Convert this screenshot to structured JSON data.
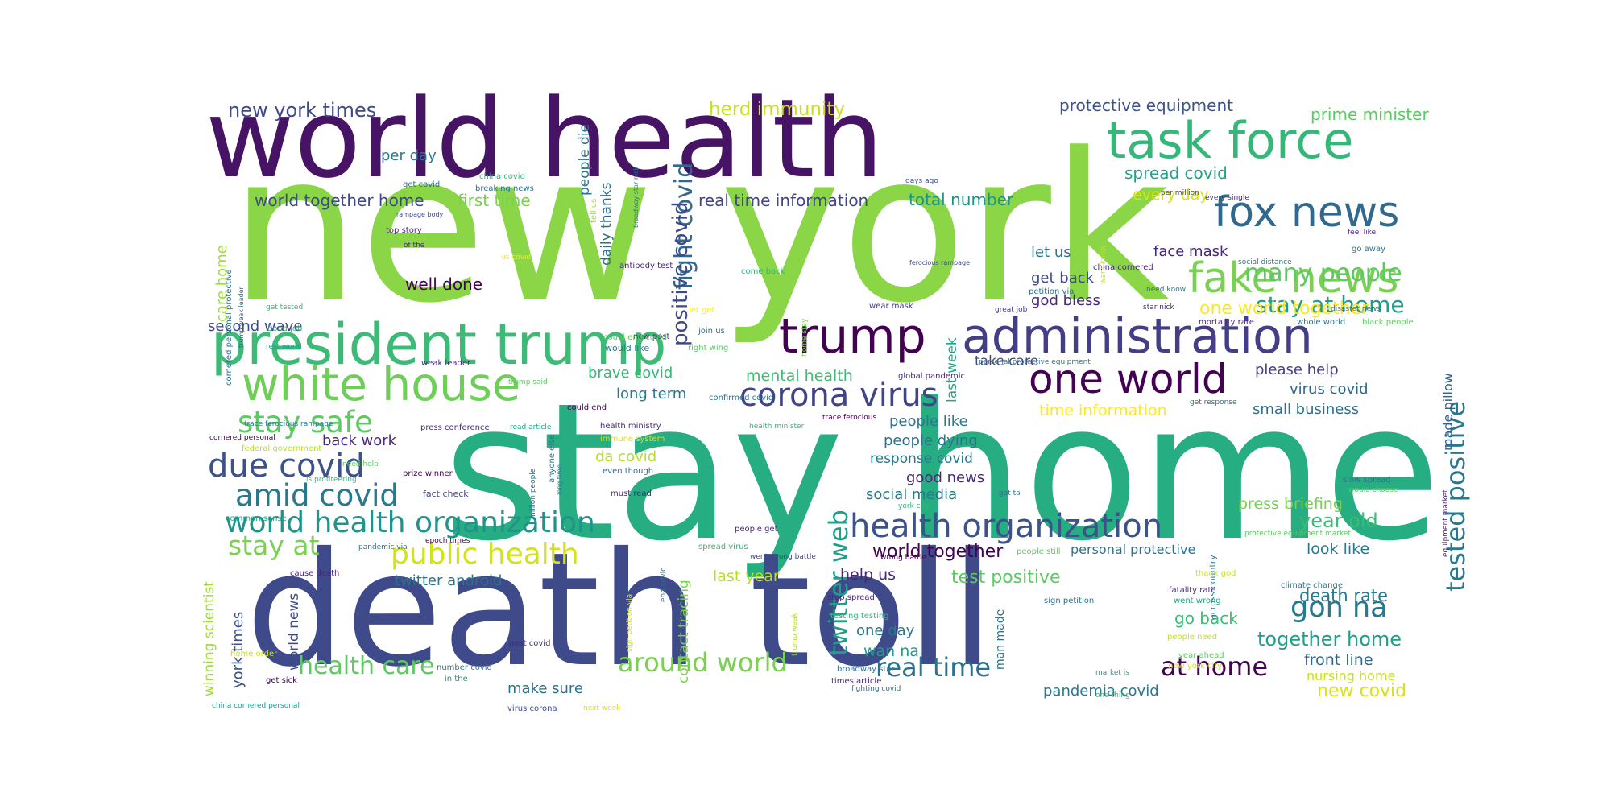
{
  "word_cloud": {
    "words": [
      {
        "text": "new york",
        "color": "#8ad647"
      },
      {
        "text": "stay home",
        "color": "#26ad81"
      },
      {
        "text": "death toll",
        "color": "#3e4a89"
      },
      {
        "text": "world health",
        "color": "#471365"
      },
      {
        "text": "president trump",
        "color": "#3bbb75"
      },
      {
        "text": "administration",
        "color": "#433e85"
      },
      {
        "text": "trump",
        "color": "#440154"
      },
      {
        "text": "task force",
        "color": "#35b779"
      },
      {
        "text": "fox news",
        "color": "#31688e"
      },
      {
        "text": "fake news",
        "color": "#7ad151"
      },
      {
        "text": "white house",
        "color": "#6ece58"
      },
      {
        "text": "one world",
        "color": "#440154"
      },
      {
        "text": "corona virus",
        "color": "#414487"
      },
      {
        "text": "health organization",
        "color": "#3b528b"
      },
      {
        "text": "world health organization",
        "color": "#20938c"
      },
      {
        "text": "due covid",
        "color": "#3b528b"
      },
      {
        "text": "amid covid",
        "color": "#2a788e"
      },
      {
        "text": "stay safe",
        "color": "#5ec962"
      },
      {
        "text": "public health",
        "color": "#d2e21b"
      },
      {
        "text": "stay at",
        "color": "#7ad151"
      },
      {
        "text": "around world",
        "color": "#7ad151"
      },
      {
        "text": "real time",
        "color": "#2c728e"
      },
      {
        "text": "at home",
        "color": "#440154"
      },
      {
        "text": "health care",
        "color": "#5ec962"
      },
      {
        "text": "gon na",
        "color": "#2a788e"
      },
      {
        "text": "tested positive",
        "color": "#2a788e"
      },
      {
        "text": "twitter web",
        "color": "#1f9e89"
      },
      {
        "text": "fight covid",
        "color": "#31688e"
      },
      {
        "text": "positive covid",
        "color": "#3e4989"
      },
      {
        "text": "many people",
        "color": "#5ec962"
      },
      {
        "text": "stay at home",
        "color": "#1f9e89"
      },
      {
        "text": "one world together",
        "color": "#fde725"
      },
      {
        "text": "new york times",
        "color": "#3e4a89"
      },
      {
        "text": "herd immunity",
        "color": "#c8e020"
      },
      {
        "text": "protective equipment",
        "color": "#3b528b"
      },
      {
        "text": "prime minister",
        "color": "#5ec962"
      },
      {
        "text": "spread covid",
        "color": "#20a386"
      },
      {
        "text": "every day",
        "color": "#d8e219"
      },
      {
        "text": "real time information",
        "color": "#414487"
      },
      {
        "text": "total number",
        "color": "#21918c"
      },
      {
        "text": "world together home",
        "color": "#3e4989"
      },
      {
        "text": "first time",
        "color": "#7ad151"
      },
      {
        "text": "per day",
        "color": "#2a788e"
      },
      {
        "text": "people die",
        "color": "#2c728e"
      },
      {
        "text": "daily thanks",
        "color": "#2c728e"
      },
      {
        "text": "care home",
        "color": "#a0da39"
      },
      {
        "text": "second wave",
        "color": "#3e4989"
      },
      {
        "text": "well done",
        "color": "#440154"
      },
      {
        "text": "face mask",
        "color": "#482878"
      },
      {
        "text": "let us",
        "color": "#2a788e"
      },
      {
        "text": "get back",
        "color": "#3e4a89"
      },
      {
        "text": "god bless",
        "color": "#482878"
      },
      {
        "text": "last week",
        "color": "#20a386"
      },
      {
        "text": "take care",
        "color": "#3e4a89"
      },
      {
        "text": "mental health",
        "color": "#3bbb75"
      },
      {
        "text": "brave covid",
        "color": "#35b779"
      },
      {
        "text": "long term",
        "color": "#2a788e"
      },
      {
        "text": "people like",
        "color": "#2a788e"
      },
      {
        "text": "time information",
        "color": "#fde725"
      },
      {
        "text": "please help",
        "color": "#433e85"
      },
      {
        "text": "virus covid",
        "color": "#31688e"
      },
      {
        "text": "small business",
        "color": "#2c728e"
      },
      {
        "text": "made pillow",
        "color": "#35608d"
      },
      {
        "text": "back work",
        "color": "#482878"
      },
      {
        "text": "people dying",
        "color": "#2c728e"
      },
      {
        "text": "response covid",
        "color": "#2a788e"
      },
      {
        "text": "good news",
        "color": "#482878"
      },
      {
        "text": "social media",
        "color": "#2a788e"
      },
      {
        "text": "da covid",
        "color": "#b5de2b"
      },
      {
        "text": "press briefing",
        "color": "#7ad151"
      },
      {
        "text": "year old",
        "color": "#3bbb75"
      },
      {
        "text": "look like",
        "color": "#2a788e"
      },
      {
        "text": "world together",
        "color": "#440154"
      },
      {
        "text": "personal protective",
        "color": "#2c728e"
      },
      {
        "text": "test positive",
        "color": "#5ec962"
      },
      {
        "text": "help us",
        "color": "#482878"
      },
      {
        "text": "last year",
        "color": "#b5de2b"
      },
      {
        "text": "twitter android",
        "color": "#2c728e"
      },
      {
        "text": "death rate",
        "color": "#2a788e"
      },
      {
        "text": "go back",
        "color": "#3bbb75"
      },
      {
        "text": "together home",
        "color": "#1f9e89"
      },
      {
        "text": "front line",
        "color": "#31688e"
      },
      {
        "text": "nursing home",
        "color": "#c8e020"
      },
      {
        "text": "new covid",
        "color": "#d8e219"
      },
      {
        "text": "make sure",
        "color": "#2c728e"
      },
      {
        "text": "pandemia covid",
        "color": "#2a788e"
      },
      {
        "text": "one day",
        "color": "#2a788e"
      },
      {
        "text": "wan na",
        "color": "#1f9e89"
      },
      {
        "text": "contact tracing",
        "color": "#7ad151"
      },
      {
        "text": "york times",
        "color": "#3b528b"
      },
      {
        "text": "world news",
        "color": "#3e4989"
      },
      {
        "text": "winning scientist",
        "color": "#a0da39"
      },
      {
        "text": "man made",
        "color": "#2c728e"
      },
      {
        "text": "across country",
        "color": "#2a788e"
      },
      {
        "text": "get covid",
        "color": "#31688e"
      },
      {
        "text": "china covid",
        "color": "#35b779"
      },
      {
        "text": "breaking news",
        "color": "#2a788e"
      },
      {
        "text": "rampage body",
        "color": "#3e4989"
      },
      {
        "text": "top story",
        "color": "#482878"
      },
      {
        "text": "of the",
        "color": "#482878"
      },
      {
        "text": "us covid",
        "color": "#fde725"
      },
      {
        "text": "tell us",
        "color": "#a0da39"
      },
      {
        "text": "broadway star nick",
        "color": "#2a788e"
      },
      {
        "text": "antibody test",
        "color": "#482878"
      },
      {
        "text": "come back",
        "color": "#35b779"
      },
      {
        "text": "days ago",
        "color": "#3e4a89"
      },
      {
        "text": "per million",
        "color": "#3e4989"
      },
      {
        "text": "every single",
        "color": "#482878"
      },
      {
        "text": "feel like",
        "color": "#482878"
      },
      {
        "text": "go away",
        "color": "#2c728e"
      },
      {
        "text": "social distance",
        "color": "#2a788e"
      },
      {
        "text": "ferocious rampage",
        "color": "#3e4a89"
      },
      {
        "text": "china cornered",
        "color": "#482878"
      },
      {
        "text": "need know",
        "color": "#2a788e"
      },
      {
        "text": "star nick",
        "color": "#482878"
      },
      {
        "text": "disaster news",
        "color": "#2a788e"
      },
      {
        "text": "want know",
        "color": "#c8e020"
      },
      {
        "text": "petition via",
        "color": "#2c728e"
      },
      {
        "text": "great job",
        "color": "#433e85"
      },
      {
        "text": "wear mask",
        "color": "#433e85"
      },
      {
        "text": "trump weak leader",
        "color": "#31688e"
      },
      {
        "text": "cornered personal protective",
        "color": "#2c728e"
      },
      {
        "text": "get tested",
        "color": "#35b779"
      },
      {
        "text": "good job",
        "color": "#35b779"
      },
      {
        "text": "rest world",
        "color": "#1f9e89"
      },
      {
        "text": "weak leader",
        "color": "#482878"
      },
      {
        "text": "let get",
        "color": "#fde725"
      },
      {
        "text": "join us",
        "color": "#2c728e"
      },
      {
        "text": "right wing",
        "color": "#5ec962"
      },
      {
        "text": "home stay",
        "color": "#7ad151"
      },
      {
        "text": "new post",
        "color": "#482878"
      },
      {
        "text": "would like",
        "color": "#2a788e"
      },
      {
        "text": "could end covid",
        "color": "#5ec962"
      },
      {
        "text": "trump said",
        "color": "#5ec962"
      },
      {
        "text": "could end",
        "color": "#440154"
      },
      {
        "text": "global pandemic",
        "color": "#482878"
      },
      {
        "text": "confirmed covid",
        "color": "#2c728e"
      },
      {
        "text": "trace ferocious",
        "color": "#440154"
      },
      {
        "text": "mortality rate",
        "color": "#482878"
      },
      {
        "text": "whole world",
        "color": "#2c728e"
      },
      {
        "text": "black people",
        "color": "#5ec962"
      },
      {
        "text": "personal protective equipment",
        "color": "#2a788e"
      },
      {
        "text": "trace ferocious rampage",
        "color": "#2a788e"
      },
      {
        "text": "press conference",
        "color": "#482878"
      },
      {
        "text": "read article",
        "color": "#20a386"
      },
      {
        "text": "health ministry",
        "color": "#482878"
      },
      {
        "text": "health minister",
        "color": "#35b779"
      },
      {
        "text": "get response",
        "color": "#2c728e"
      },
      {
        "text": "cornered personal",
        "color": "#440154"
      },
      {
        "text": "federal government",
        "color": "#b5de2b"
      },
      {
        "text": "immune system",
        "color": "#d8e219"
      },
      {
        "text": "anyone else",
        "color": "#2a788e"
      },
      {
        "text": "million people",
        "color": "#2c728e"
      },
      {
        "text": "long time",
        "color": "#2a788e"
      },
      {
        "text": "even though",
        "color": "#2c728e"
      },
      {
        "text": "need help",
        "color": "#5ec962"
      },
      {
        "text": "prize winner",
        "color": "#440154"
      },
      {
        "text": "is profiteering",
        "color": "#35b779"
      },
      {
        "text": "fact check",
        "color": "#3e4989"
      },
      {
        "text": "must read",
        "color": "#482878"
      },
      {
        "text": "got ta",
        "color": "#2c728e"
      },
      {
        "text": "york city",
        "color": "#35b779"
      },
      {
        "text": "slow spread",
        "color": "#2a788e"
      },
      {
        "text": "would choose",
        "color": "#5ec962"
      },
      {
        "text": "equipment market",
        "color": "#482878"
      },
      {
        "text": "common sense",
        "color": "#20a386"
      },
      {
        "text": "people get",
        "color": "#482878"
      },
      {
        "text": "epoch times",
        "color": "#440154"
      },
      {
        "text": "pandemic via",
        "color": "#2c728e"
      },
      {
        "text": "spread virus",
        "color": "#35b779"
      },
      {
        "text": "went wrong battle",
        "color": "#3e4a89"
      },
      {
        "text": "wrong battle",
        "color": "#440154"
      },
      {
        "text": "people still",
        "color": "#5ec962"
      },
      {
        "text": "protective equipment market",
        "color": "#5ec962"
      },
      {
        "text": "thank god",
        "color": "#c8e020"
      },
      {
        "text": "cause death",
        "color": "#482878"
      },
      {
        "text": "end covid",
        "color": "#2c728e"
      },
      {
        "text": "sign petition via",
        "color": "#d8e219"
      },
      {
        "text": "stop spread",
        "color": "#482878"
      },
      {
        "text": "sign petition",
        "color": "#2a788e"
      },
      {
        "text": "climate change",
        "color": "#2a788e"
      },
      {
        "text": "fatality rate",
        "color": "#482878"
      },
      {
        "text": "went wrong",
        "color": "#20a386"
      },
      {
        "text": "testing testing",
        "color": "#35b779"
      },
      {
        "text": "home order",
        "color": "#c8e020"
      },
      {
        "text": "post covid",
        "color": "#482878"
      },
      {
        "text": "number covid",
        "color": "#2a788e"
      },
      {
        "text": "in the",
        "color": "#1f9e89"
      },
      {
        "text": "get sick",
        "color": "#440154"
      },
      {
        "text": "trump weak",
        "color": "#b5de2b"
      },
      {
        "text": "people need",
        "color": "#c8e020"
      },
      {
        "text": "year ahead",
        "color": "#5ec962"
      },
      {
        "text": "new york city",
        "color": "#d8e219"
      },
      {
        "text": "broadway star",
        "color": "#2c728e"
      },
      {
        "text": "times article",
        "color": "#482878"
      },
      {
        "text": "fighting covid",
        "color": "#2c728e"
      },
      {
        "text": "market is",
        "color": "#1f9e89"
      },
      {
        "text": "one thing",
        "color": "#35b779"
      },
      {
        "text": "china cornered personal",
        "color": "#1f9e89"
      },
      {
        "text": "virus corona",
        "color": "#3e4a89"
      },
      {
        "text": "next week",
        "color": "#d8e219"
      }
    ]
  }
}
